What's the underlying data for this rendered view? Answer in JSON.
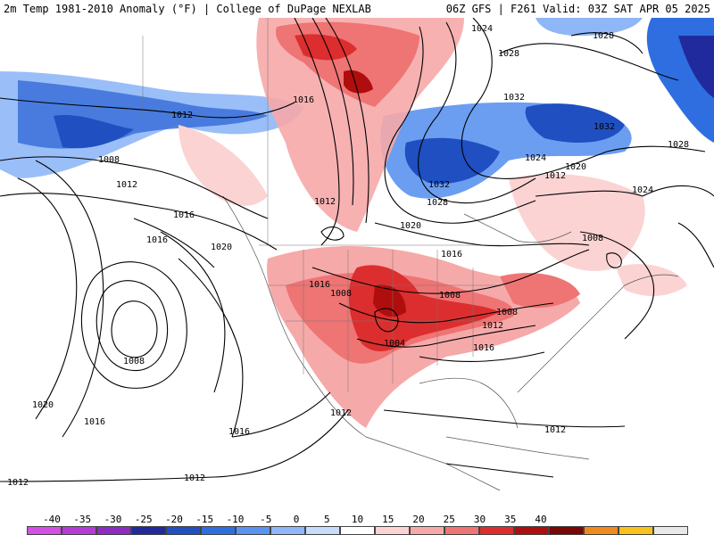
{
  "header": {
    "title_left": "2m Temp 1981-2010 Anomaly (°F) | College of DuPage NEXLAB",
    "title_right": "06Z GFS | F261 Valid: 03Z SAT APR 05 2025"
  },
  "isobar_labels": [
    "1024",
    "1028",
    "1028",
    "1032",
    "1016",
    "1012",
    "1008",
    "1012",
    "1032",
    "1032",
    "1028",
    "1024",
    "1020",
    "1012",
    "1028",
    "1024",
    "1012",
    "1020",
    "1016",
    "1016",
    "1008",
    "1016",
    "1020",
    "1016",
    "1008",
    "1008",
    "1008",
    "1012",
    "1008",
    "1004",
    "1016",
    "1012",
    "1020",
    "1016",
    "1016",
    "1012",
    "1012",
    "1012"
  ],
  "colorbar": {
    "labels": [
      "-40",
      "-35",
      "-30",
      "-25",
      "-20",
      "-15",
      "-10",
      "-5",
      "0",
      "5",
      "10",
      "15",
      "20",
      "25",
      "30",
      "35",
      "40"
    ],
    "colors": [
      "#d44fe3",
      "#b43bd6",
      "#8e2bc2",
      "#202a9c",
      "#1f4fc0",
      "#2f6ee0",
      "#5b93f0",
      "#8fb7f7",
      "#c7dcfb",
      "#ffffff",
      "#fbd3d3",
      "#f6a9a9",
      "#ef7474",
      "#dc2e2e",
      "#b00e0e",
      "#7a0606",
      "#f08a1c",
      "#f7c21a",
      "#e8e8e8"
    ]
  }
}
